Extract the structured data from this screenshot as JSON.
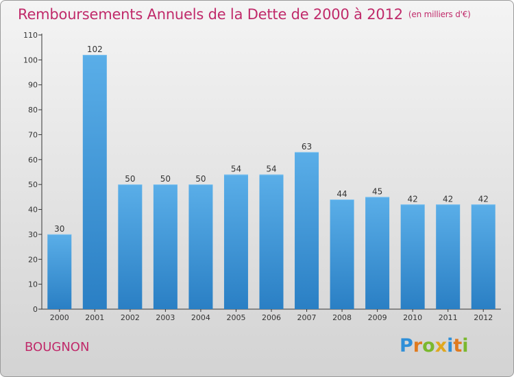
{
  "title": "Remboursements Annuels de la Dette de 2000 à 2012",
  "subtitle": "(en milliers d'€)",
  "commune": "BOUGNON",
  "logo": {
    "text": "Proxiti",
    "letters": [
      {
        "ch": "P",
        "color": "#2f8fd8"
      },
      {
        "ch": "r",
        "color": "#e07a1f"
      },
      {
        "ch": "o",
        "color": "#7ab82e"
      },
      {
        "ch": "x",
        "color": "#e0a81f"
      },
      {
        "ch": "i",
        "color": "#2f8fd8"
      },
      {
        "ch": "t",
        "color": "#e07a1f"
      },
      {
        "ch": "i",
        "color": "#7ab82e"
      }
    ]
  },
  "colors": {
    "title": "#c02a6a",
    "bar_top": "#5aaee8",
    "bar_bottom": "#2a7fc4",
    "axis": "#333333"
  },
  "chart_data": {
    "type": "bar",
    "categories": [
      "2000",
      "2001",
      "2002",
      "2003",
      "2004",
      "2005",
      "2006",
      "2007",
      "2008",
      "2009",
      "2010",
      "2011",
      "2012"
    ],
    "values": [
      30,
      102,
      50,
      50,
      50,
      54,
      54,
      63,
      44,
      45,
      42,
      42,
      42
    ],
    "title": "Remboursements Annuels de la Dette de 2000 à 2012",
    "subtitle": "(en milliers d'€)",
    "ylim": [
      0,
      110
    ],
    "yticks": [
      0,
      10,
      20,
      30,
      40,
      50,
      60,
      70,
      80,
      90,
      100,
      110
    ],
    "grid": false,
    "legend": "none"
  }
}
